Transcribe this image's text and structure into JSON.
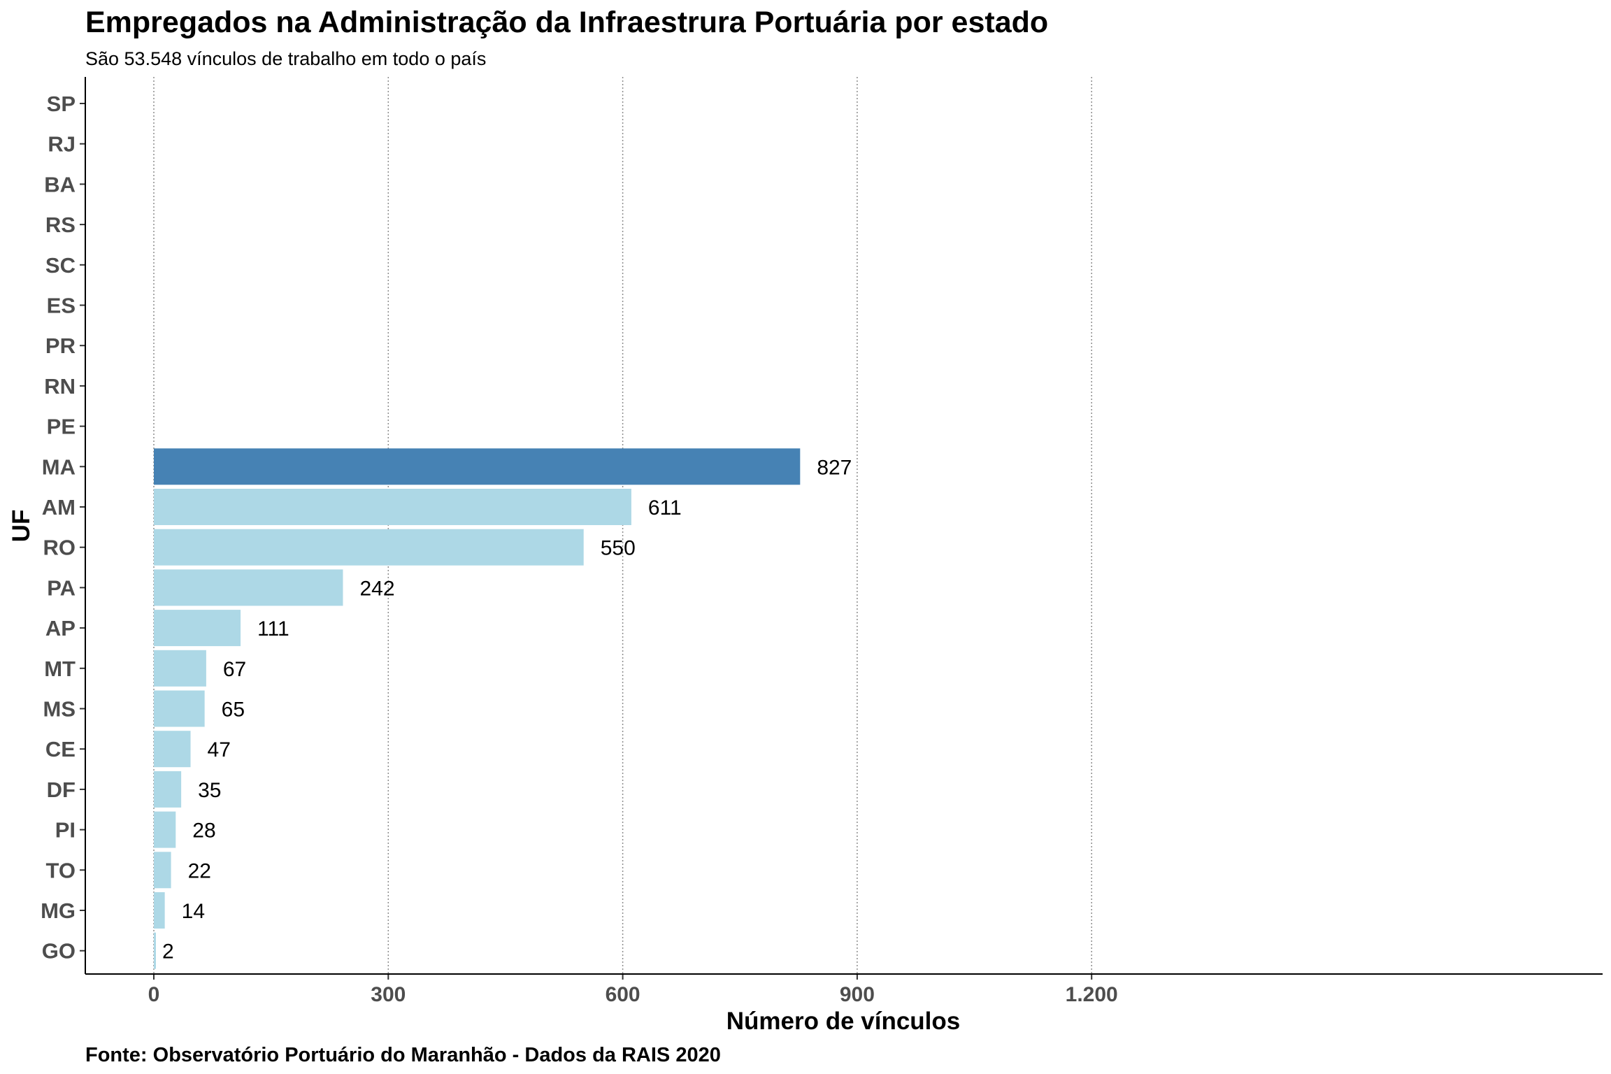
{
  "colors": {
    "highlight": "#4682b4",
    "bar": "#add8e6",
    "grid": "#8c8c8c"
  },
  "chart_data": {
    "type": "bar",
    "orientation": "horizontal",
    "title": "Empregados na Administração da Infraestrura Portuária por estado",
    "subtitle": "São 53.548 vínculos de trabalho em todo o país",
    "xlabel": "Número de vínculos",
    "ylabel": "UF",
    "caption": "Fonte: Observatório Portuário do Maranhão - Dados da RAIS 2020",
    "xlim": [
      -30,
      1260
    ],
    "xticks": [
      0,
      300,
      600,
      900,
      1200
    ],
    "xtick_labels": [
      "0",
      "300",
      "600",
      "900",
      "1.200"
    ],
    "grid": "vertical dotted",
    "legend": "none",
    "highlight_category": "MA",
    "categories": [
      "SP",
      "RJ",
      "BA",
      "RS",
      "SC",
      "ES",
      "PR",
      "RN",
      "PE",
      "MA",
      "AM",
      "RO",
      "PA",
      "AP",
      "MT",
      "MS",
      "CE",
      "DF",
      "PI",
      "TO",
      "MG",
      "GO"
    ],
    "values": [
      null,
      null,
      null,
      null,
      null,
      null,
      null,
      null,
      null,
      827,
      611,
      550,
      242,
      111,
      67,
      65,
      47,
      35,
      28,
      22,
      14,
      2
    ]
  }
}
